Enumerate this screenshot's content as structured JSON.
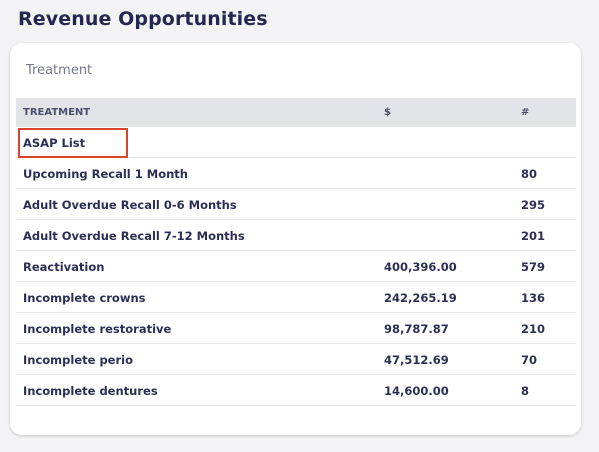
{
  "page": {
    "title": "Revenue Opportunities"
  },
  "card": {
    "title": "Treatment"
  },
  "table": {
    "headers": {
      "name": "TREATMENT",
      "dollar": "$",
      "count": "#"
    },
    "rows": [
      {
        "name": "ASAP List",
        "dollar": "",
        "count": ""
      },
      {
        "name": "Upcoming Recall 1 Month",
        "dollar": "",
        "count": "80"
      },
      {
        "name": "Adult Overdue Recall 0-6 Months",
        "dollar": "",
        "count": "295"
      },
      {
        "name": "Adult Overdue Recall 7-12 Months",
        "dollar": "",
        "count": "201"
      },
      {
        "name": "Reactivation",
        "dollar": "400,396.00",
        "count": "579"
      },
      {
        "name": "Incomplete crowns",
        "dollar": "242,265.19",
        "count": "136"
      },
      {
        "name": "Incomplete restorative",
        "dollar": "98,787.87",
        "count": "210"
      },
      {
        "name": "Incomplete perio",
        "dollar": "47,512.69",
        "count": "70"
      },
      {
        "name": "Incomplete dentures",
        "dollar": "14,600.00",
        "count": "8"
      }
    ]
  },
  "colors": {
    "highlight": "#d9442f",
    "header_bg": "#e2e3e7",
    "text": "#2c2f55"
  }
}
